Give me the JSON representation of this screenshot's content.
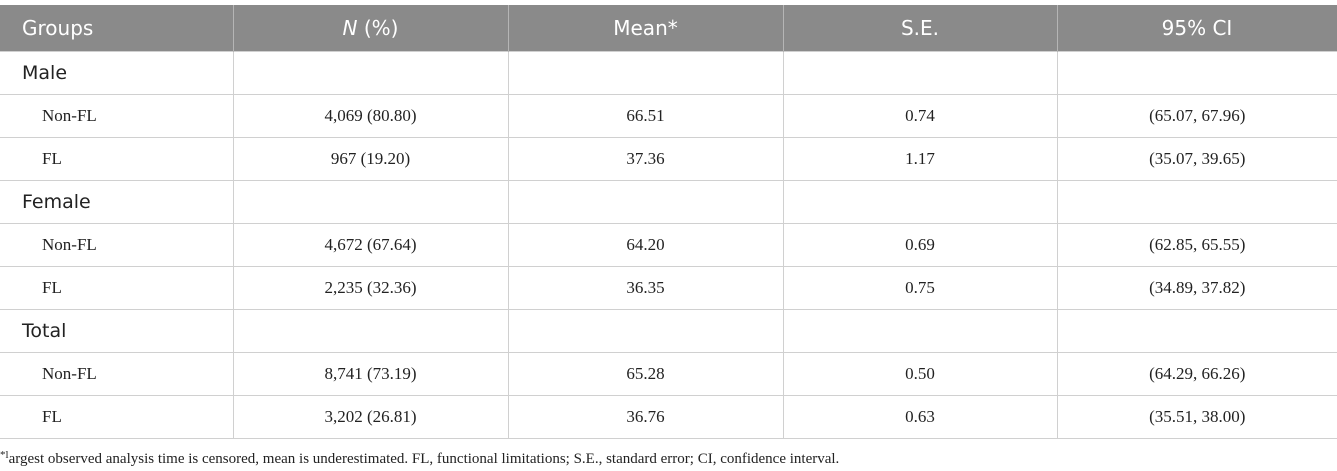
{
  "table": {
    "header": [
      "Groups",
      "N (%)",
      "Mean*",
      "S.E.",
      "95% CI"
    ],
    "rows": [
      [
        "Male"
      ],
      [
        "Non-FL",
        "4,069 (80.80)",
        "66.51",
        "0.74",
        "(65.07, 67.96)"
      ],
      [
        "FL",
        "967 (19.20)",
        "37.36",
        "1.17",
        "(35.07, 39.65)"
      ],
      [
        "Female"
      ],
      [
        "Non-FL",
        "4,672 (67.64)",
        "64.20",
        "0.69",
        "(62.85, 65.55)"
      ],
      [
        "FL",
        "2,235 (32.36)",
        "36.35",
        "0.75",
        "(34.89, 37.82)"
      ],
      [
        "Total"
      ],
      [
        "Non-FL",
        "8,741 (73.19)",
        "65.28",
        "0.50",
        "(64.29, 66.26)"
      ],
      [
        "FL",
        "3,202 (26.81)",
        "36.76",
        "0.63",
        "(35.51, 38.00)"
      ]
    ]
  },
  "footnote": "*largest observed analysis time is censored, mean is underestimated. FL, functional limitations; S.E., standard error; CI, confidence interval."
}
